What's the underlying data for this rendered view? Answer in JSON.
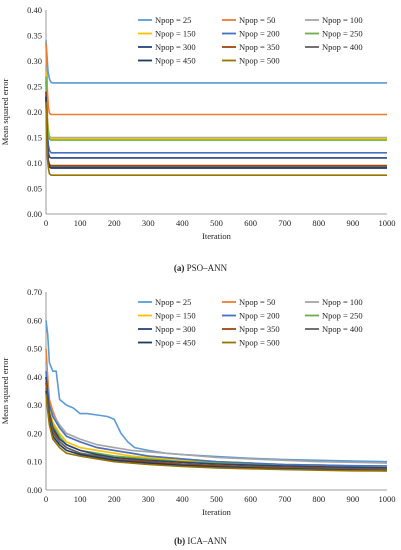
{
  "captions": {
    "a": {
      "tag": "(a)",
      "text": "PSO–ANN"
    },
    "b": {
      "tag": "(b)",
      "text": "ICA–ANN"
    }
  },
  "chart_data": [
    {
      "type": "line",
      "title": "",
      "xlabel": "Iteration",
      "ylabel": "Mean squared error",
      "xlim": [
        0,
        1000
      ],
      "ylim": [
        0,
        0.4
      ],
      "xticks": [
        "0",
        "100",
        "200",
        "300",
        "400",
        "500",
        "600",
        "700",
        "800",
        "900",
        "1000"
      ],
      "yticks": [
        "0.00",
        "0.05",
        "0.10",
        "0.15",
        "0.20",
        "0.25",
        "0.30",
        "0.35",
        "0.40"
      ],
      "grid": false,
      "legend_position": "top-right",
      "series": [
        {
          "name": "Npop = 25",
          "color": "#5b9bd5",
          "x": [
            0,
            3,
            6,
            10,
            15,
            20,
            30,
            1000
          ],
          "y": [
            0.34,
            0.31,
            0.28,
            0.265,
            0.258,
            0.257,
            0.257,
            0.257
          ]
        },
        {
          "name": "Npop = 50",
          "color": "#ed7d31",
          "x": [
            0,
            2,
            4,
            7,
            10,
            15,
            25,
            1000
          ],
          "y": [
            0.335,
            0.29,
            0.24,
            0.21,
            0.198,
            0.195,
            0.195,
            0.195
          ]
        },
        {
          "name": "Npop = 100",
          "color": "#a5a5a5",
          "x": [
            0,
            2,
            4,
            7,
            10,
            15,
            25,
            1000
          ],
          "y": [
            0.29,
            0.24,
            0.19,
            0.165,
            0.152,
            0.15,
            0.15,
            0.15
          ]
        },
        {
          "name": "Npop = 150",
          "color": "#ffc000",
          "x": [
            0,
            2,
            4,
            7,
            10,
            15,
            25,
            1000
          ],
          "y": [
            0.28,
            0.23,
            0.18,
            0.16,
            0.15,
            0.148,
            0.148,
            0.148
          ]
        },
        {
          "name": "Npop = 200",
          "color": "#4472c4",
          "x": [
            0,
            2,
            4,
            7,
            10,
            15,
            25,
            1000
          ],
          "y": [
            0.26,
            0.21,
            0.16,
            0.135,
            0.125,
            0.12,
            0.12,
            0.12
          ]
        },
        {
          "name": "Npop = 250",
          "color": "#70ad47",
          "x": [
            0,
            2,
            4,
            7,
            10,
            15,
            25,
            1000
          ],
          "y": [
            0.27,
            0.22,
            0.175,
            0.155,
            0.147,
            0.145,
            0.145,
            0.145
          ]
        },
        {
          "name": "Npop = 300",
          "color": "#264478",
          "x": [
            0,
            2,
            4,
            7,
            10,
            15,
            25,
            1000
          ],
          "y": [
            0.24,
            0.19,
            0.14,
            0.12,
            0.112,
            0.11,
            0.11,
            0.11
          ]
        },
        {
          "name": "Npop = 350",
          "color": "#9e480e",
          "x": [
            0,
            2,
            4,
            7,
            10,
            15,
            25,
            1000
          ],
          "y": [
            0.24,
            0.18,
            0.13,
            0.105,
            0.097,
            0.095,
            0.095,
            0.095
          ]
        },
        {
          "name": "Npop = 400",
          "color": "#636363",
          "x": [
            0,
            2,
            4,
            7,
            10,
            15,
            25,
            1000
          ],
          "y": [
            0.23,
            0.17,
            0.125,
            0.1,
            0.093,
            0.092,
            0.092,
            0.092
          ]
        },
        {
          "name": "Npop = 450",
          "color": "#203864",
          "x": [
            0,
            2,
            4,
            7,
            10,
            15,
            25,
            1000
          ],
          "y": [
            0.23,
            0.17,
            0.12,
            0.1,
            0.092,
            0.09,
            0.09,
            0.09
          ]
        },
        {
          "name": "Npop = 500",
          "color": "#997300",
          "x": [
            0,
            2,
            4,
            7,
            10,
            15,
            25,
            1000
          ],
          "y": [
            0.22,
            0.16,
            0.11,
            0.09,
            0.079,
            0.076,
            0.076,
            0.076
          ]
        }
      ]
    },
    {
      "type": "line",
      "title": "",
      "xlabel": "Iteration",
      "ylabel": "Mean squared error",
      "xlim": [
        0,
        1000
      ],
      "ylim": [
        0,
        0.7
      ],
      "xticks": [
        "0",
        "100",
        "200",
        "300",
        "400",
        "500",
        "600",
        "700",
        "800",
        "900",
        "1000"
      ],
      "yticks": [
        "0.00",
        "0.10",
        "0.20",
        "0.30",
        "0.40",
        "0.50",
        "0.60",
        "0.70"
      ],
      "grid": false,
      "legend_position": "top-right",
      "series": [
        {
          "name": "Npop = 25",
          "color": "#5b9bd5",
          "x": [
            0,
            5,
            10,
            20,
            30,
            40,
            60,
            80,
            100,
            120,
            150,
            180,
            200,
            220,
            240,
            260,
            300,
            350,
            400,
            500,
            600,
            700,
            800,
            900,
            1000
          ],
          "y": [
            0.6,
            0.55,
            0.45,
            0.42,
            0.42,
            0.32,
            0.3,
            0.29,
            0.27,
            0.27,
            0.265,
            0.26,
            0.25,
            0.2,
            0.17,
            0.15,
            0.14,
            0.13,
            0.125,
            0.118,
            0.112,
            0.108,
            0.105,
            0.102,
            0.1
          ]
        },
        {
          "name": "Npop = 50",
          "color": "#ed7d31",
          "x": [
            0,
            5,
            10,
            20,
            40,
            60,
            100,
            150,
            200,
            250,
            300,
            400,
            500,
            600,
            700,
            800,
            900,
            1000
          ],
          "y": [
            0.5,
            0.4,
            0.32,
            0.28,
            0.22,
            0.19,
            0.17,
            0.15,
            0.14,
            0.13,
            0.12,
            0.11,
            0.1,
            0.095,
            0.09,
            0.088,
            0.085,
            0.085
          ]
        },
        {
          "name": "Npop = 100",
          "color": "#a5a5a5",
          "x": [
            0,
            5,
            10,
            20,
            40,
            60,
            100,
            150,
            200,
            250,
            300,
            400,
            500,
            600,
            700,
            800,
            900,
            1000
          ],
          "y": [
            0.45,
            0.37,
            0.3,
            0.27,
            0.23,
            0.2,
            0.18,
            0.16,
            0.15,
            0.14,
            0.135,
            0.125,
            0.115,
            0.11,
            0.105,
            0.1,
            0.098,
            0.095
          ]
        },
        {
          "name": "Npop = 150",
          "color": "#ffc000",
          "x": [
            0,
            5,
            10,
            20,
            40,
            60,
            100,
            150,
            200,
            250,
            300,
            400,
            500,
            600,
            700,
            800,
            900,
            1000
          ],
          "y": [
            0.4,
            0.33,
            0.28,
            0.24,
            0.2,
            0.17,
            0.15,
            0.14,
            0.13,
            0.12,
            0.115,
            0.105,
            0.1,
            0.095,
            0.09,
            0.088,
            0.085,
            0.083
          ]
        },
        {
          "name": "Npop = 200",
          "color": "#4472c4",
          "x": [
            0,
            5,
            10,
            20,
            40,
            60,
            100,
            150,
            200,
            250,
            300,
            400,
            500,
            600,
            700,
            800,
            900,
            1000
          ],
          "y": [
            0.42,
            0.35,
            0.3,
            0.26,
            0.22,
            0.19,
            0.17,
            0.15,
            0.14,
            0.13,
            0.12,
            0.11,
            0.1,
            0.095,
            0.09,
            0.088,
            0.086,
            0.085
          ]
        },
        {
          "name": "Npop = 250",
          "color": "#70ad47",
          "x": [
            0,
            5,
            10,
            20,
            40,
            60,
            100,
            150,
            200,
            250,
            300,
            400,
            500,
            600,
            700,
            800,
            900,
            1000
          ],
          "y": [
            0.38,
            0.32,
            0.27,
            0.23,
            0.19,
            0.16,
            0.14,
            0.13,
            0.12,
            0.115,
            0.11,
            0.1,
            0.095,
            0.09,
            0.085,
            0.082,
            0.08,
            0.078
          ]
        },
        {
          "name": "Npop = 300",
          "color": "#264478",
          "x": [
            0,
            5,
            10,
            20,
            40,
            60,
            100,
            150,
            200,
            250,
            300,
            400,
            500,
            600,
            700,
            800,
            900,
            1000
          ],
          "y": [
            0.4,
            0.33,
            0.27,
            0.22,
            0.18,
            0.16,
            0.14,
            0.125,
            0.115,
            0.11,
            0.105,
            0.098,
            0.092,
            0.088,
            0.085,
            0.082,
            0.08,
            0.078
          ]
        },
        {
          "name": "Npop = 350",
          "color": "#9e480e",
          "x": [
            0,
            5,
            10,
            20,
            40,
            60,
            100,
            150,
            200,
            250,
            300,
            400,
            500,
            600,
            700,
            800,
            900,
            1000
          ],
          "y": [
            0.38,
            0.31,
            0.26,
            0.21,
            0.17,
            0.15,
            0.13,
            0.12,
            0.11,
            0.105,
            0.1,
            0.092,
            0.087,
            0.083,
            0.08,
            0.078,
            0.075,
            0.074
          ]
        },
        {
          "name": "Npop = 400",
          "color": "#636363",
          "x": [
            0,
            5,
            10,
            20,
            40,
            60,
            100,
            150,
            200,
            250,
            300,
            400,
            500,
            600,
            700,
            800,
            900,
            1000
          ],
          "y": [
            0.36,
            0.3,
            0.25,
            0.2,
            0.17,
            0.15,
            0.13,
            0.12,
            0.11,
            0.1,
            0.095,
            0.088,
            0.083,
            0.08,
            0.077,
            0.075,
            0.073,
            0.072
          ]
        },
        {
          "name": "Npop = 450",
          "color": "#203864",
          "x": [
            0,
            5,
            10,
            20,
            40,
            60,
            100,
            150,
            200,
            250,
            300,
            400,
            500,
            600,
            700,
            800,
            900,
            1000
          ],
          "y": [
            0.35,
            0.29,
            0.24,
            0.19,
            0.16,
            0.14,
            0.125,
            0.115,
            0.105,
            0.1,
            0.095,
            0.087,
            0.082,
            0.078,
            0.075,
            0.073,
            0.07,
            0.068
          ]
        },
        {
          "name": "Npop = 500",
          "color": "#997300",
          "x": [
            0,
            5,
            10,
            20,
            40,
            60,
            100,
            150,
            200,
            250,
            300,
            400,
            500,
            600,
            700,
            800,
            900,
            1000
          ],
          "y": [
            0.34,
            0.28,
            0.23,
            0.18,
            0.15,
            0.13,
            0.12,
            0.11,
            0.1,
            0.095,
            0.09,
            0.083,
            0.078,
            0.075,
            0.072,
            0.07,
            0.068,
            0.067
          ]
        }
      ]
    }
  ]
}
